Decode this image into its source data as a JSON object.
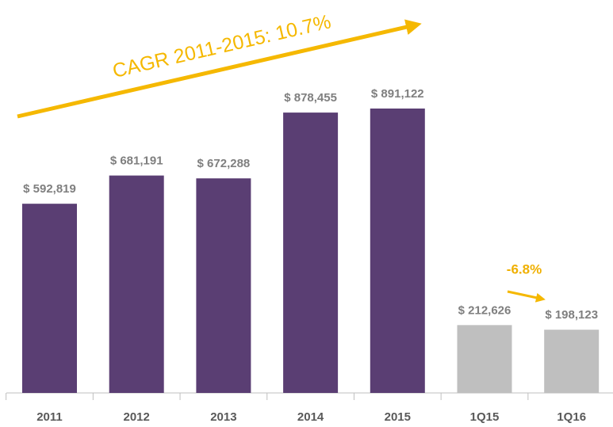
{
  "chart_data": {
    "type": "bar",
    "categories": [
      "2011",
      "2012",
      "2013",
      "2014",
      "2015",
      "1Q15",
      "1Q16"
    ],
    "values": [
      592819,
      681191,
      672288,
      878455,
      891122,
      212626,
      198123
    ],
    "value_labels": [
      "$ 592,819",
      "$ 681,191",
      "$ 672,288",
      "$ 878,455",
      "$ 891,122",
      "$ 212,626",
      "$ 198,123"
    ],
    "colors": [
      "#5a3e73",
      "#5a3e73",
      "#5a3e73",
      "#5a3e73",
      "#5a3e73",
      "#bfbfbf",
      "#bfbfbf"
    ],
    "annotations": [
      "CAGR 2011-2015: 10.7%",
      "-6.8%"
    ]
  }
}
